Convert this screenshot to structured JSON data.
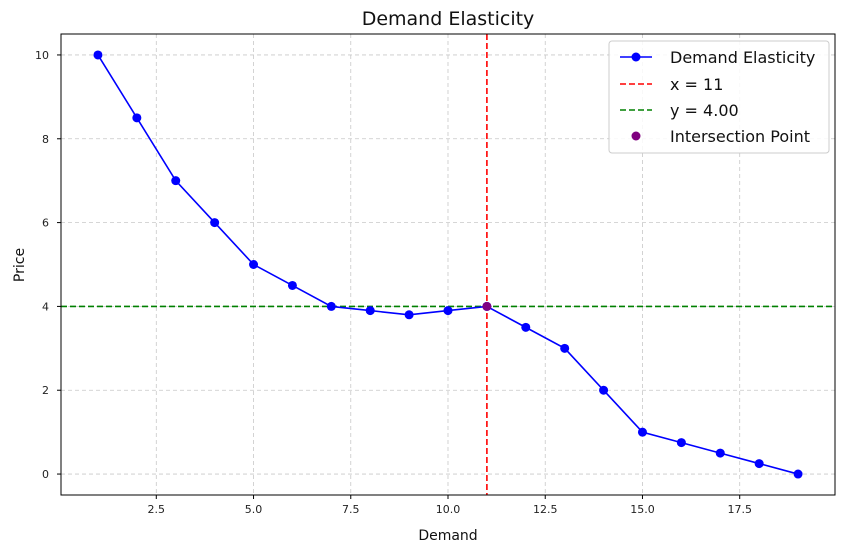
{
  "chart_data": {
    "type": "line",
    "title": "Demand Elasticity",
    "xlabel": "Demand",
    "ylabel": "Price",
    "xlim": [
      0.05,
      19.95
    ],
    "ylim": [
      -0.5,
      10.5
    ],
    "xticks": [
      2.5,
      5.0,
      7.5,
      10.0,
      12.5,
      15.0,
      17.5
    ],
    "xtick_labels": [
      "2.5",
      "5.0",
      "7.5",
      "10.0",
      "12.5",
      "15.0",
      "17.5"
    ],
    "yticks": [
      0,
      2,
      4,
      6,
      8,
      10
    ],
    "ytick_labels": [
      "0",
      "2",
      "4",
      "6",
      "8",
      "10"
    ],
    "grid": true,
    "legend_position": "top-right",
    "series": [
      {
        "name": "Demand Elasticity",
        "color": "#0000ff",
        "marker": "circle",
        "x": [
          1,
          2,
          3,
          4,
          5,
          6,
          7,
          8,
          9,
          10,
          11,
          12,
          13,
          14,
          15,
          16,
          17,
          18,
          19
        ],
        "y": [
          10,
          8.5,
          7,
          6,
          5,
          4.5,
          4,
          3.9,
          3.8,
          3.9,
          4,
          3.5,
          3,
          2,
          1,
          0.75,
          0.5,
          0.25,
          0
        ]
      }
    ],
    "reference_lines": [
      {
        "name": "x = 11",
        "orientation": "vertical",
        "value": 11,
        "color": "#ff0000",
        "style": "dashed"
      },
      {
        "name": "y = 4.00",
        "orientation": "horizontal",
        "value": 4,
        "color": "#008000",
        "style": "dashed"
      }
    ],
    "highlight_point": {
      "name": "Intersection Point",
      "x": 11,
      "y": 4,
      "color": "#800080"
    }
  }
}
